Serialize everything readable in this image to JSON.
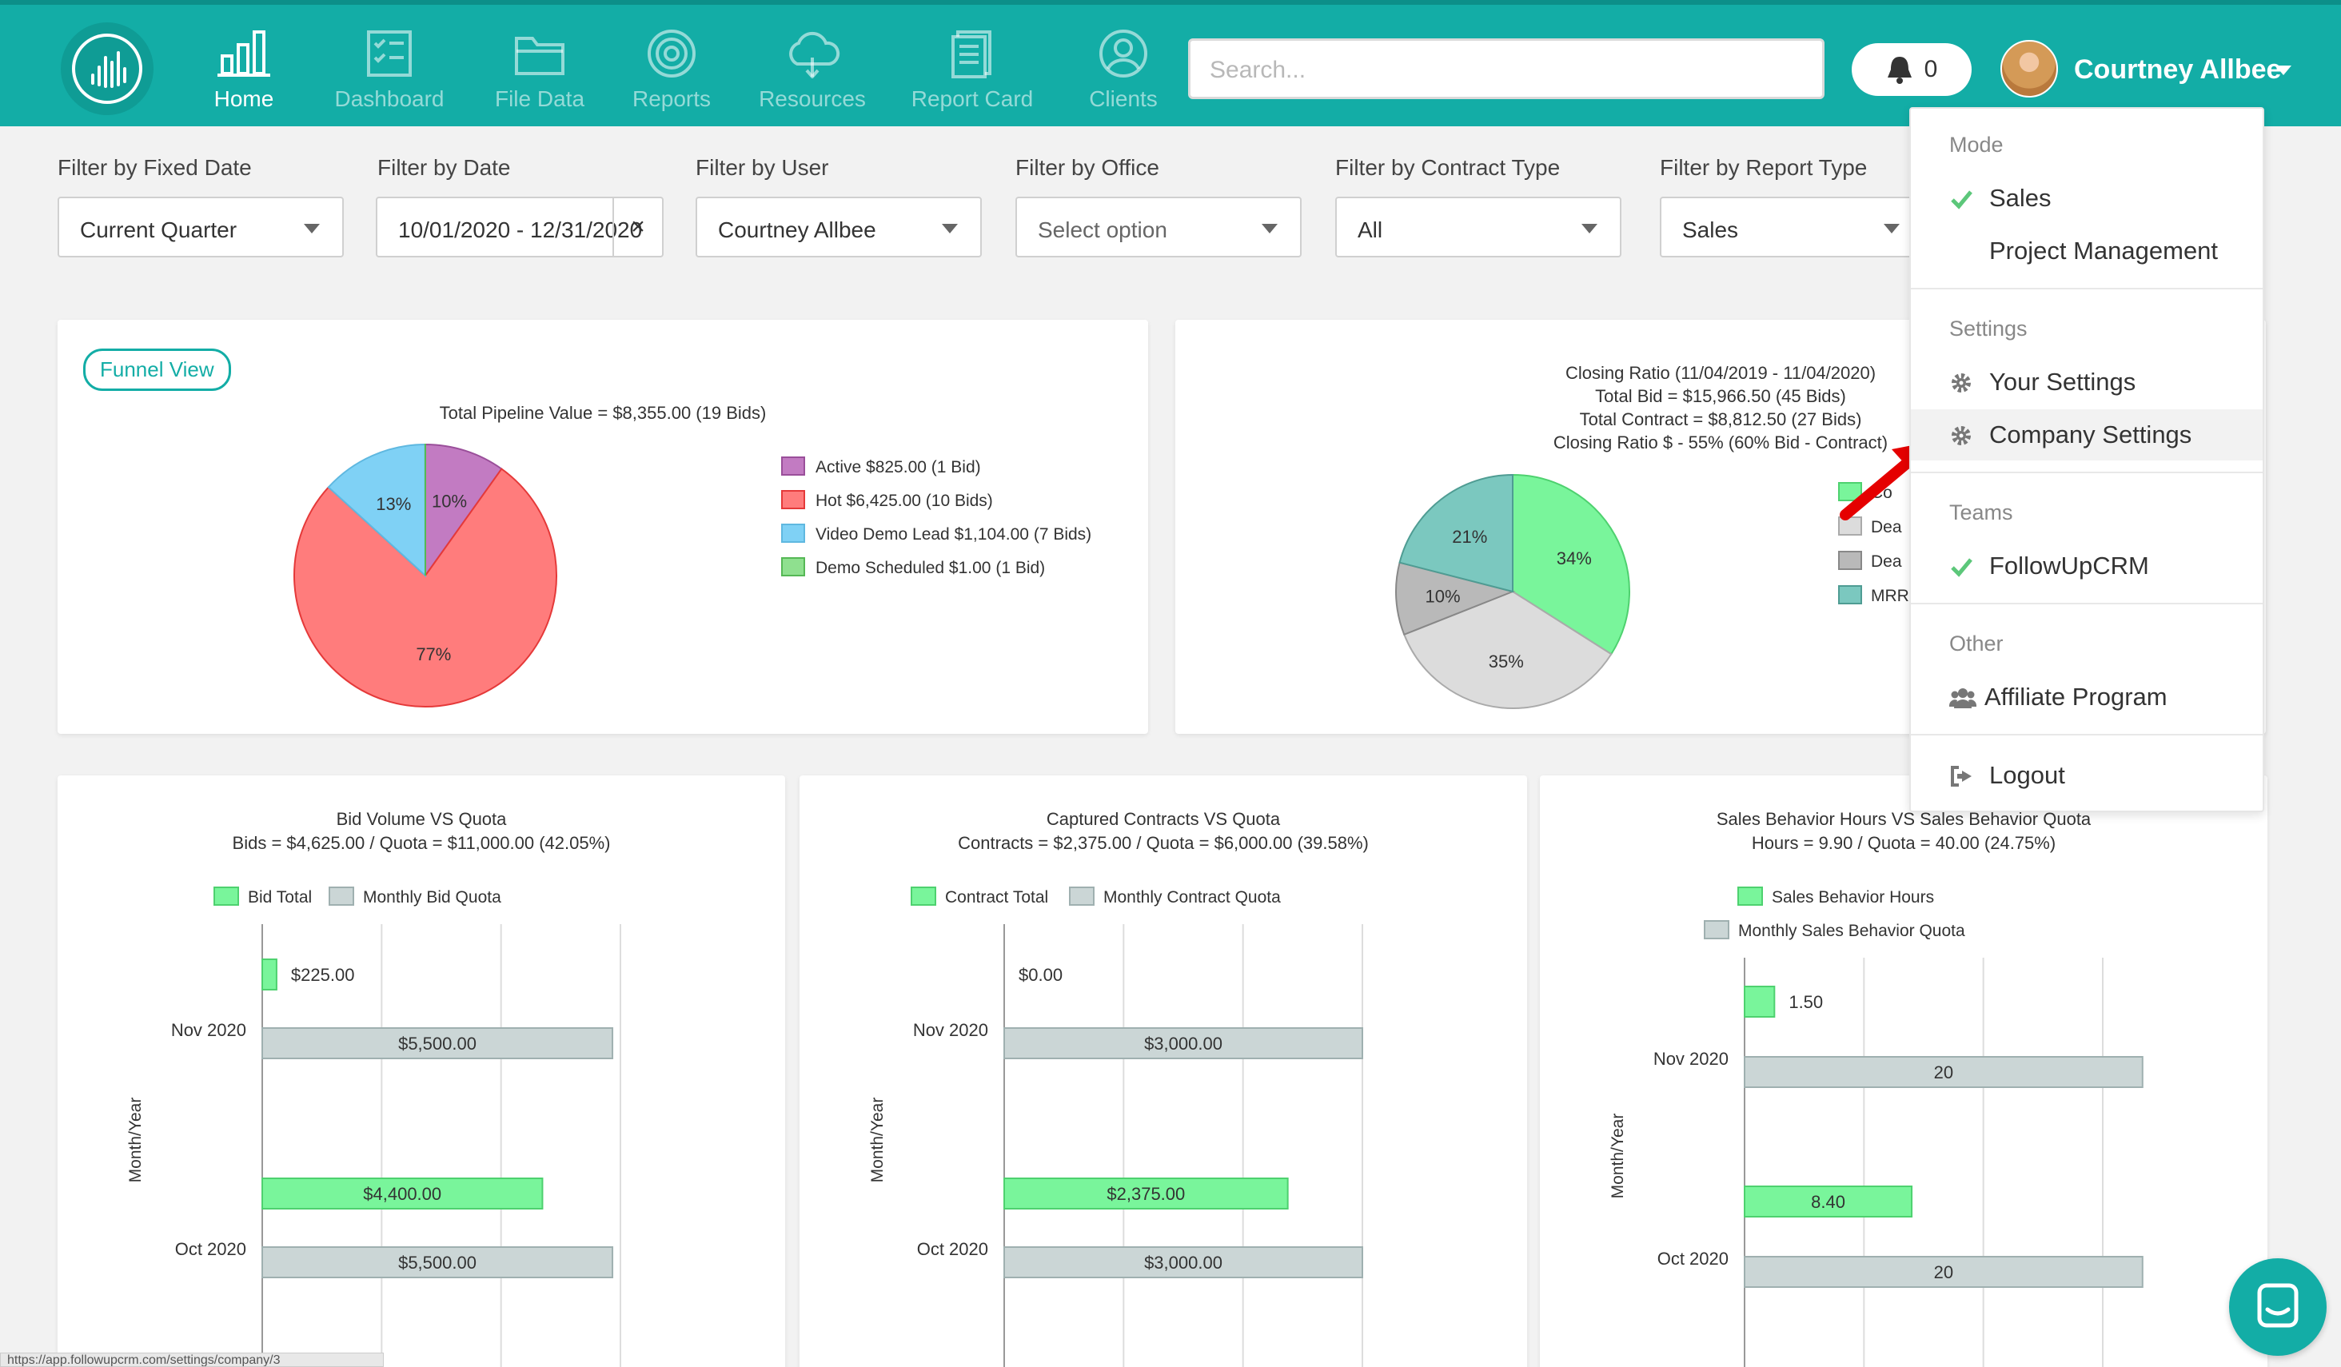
{
  "nav": {
    "items": [
      {
        "label": "Home",
        "icon": "bar-chart-icon",
        "active": true
      },
      {
        "label": "Dashboard",
        "icon": "checklist-icon",
        "active": false
      },
      {
        "label": "File Data",
        "icon": "folder-icon",
        "active": false
      },
      {
        "label": "Reports",
        "icon": "target-icon",
        "active": false
      },
      {
        "label": "Resources",
        "icon": "cloud-icon",
        "active": false
      },
      {
        "label": "Report Card",
        "icon": "document-icon",
        "active": false
      },
      {
        "label": "Clients",
        "icon": "user-circle-icon",
        "active": false
      }
    ],
    "search_placeholder": "Search...",
    "notification_count": "0",
    "user_name": "Courtney Allbee"
  },
  "filters": [
    {
      "label": "Filter by Fixed Date",
      "value": "Current Quarter"
    },
    {
      "label": "Filter by Date",
      "value": "10/01/2020 - 12/31/2020",
      "clear": "×"
    },
    {
      "label": "Filter by User",
      "value": "Courtney Allbee"
    },
    {
      "label": "Filter by Office",
      "value": "Select option"
    },
    {
      "label": "Filter by Contract Type",
      "value": "All"
    },
    {
      "label": "Filter by Report Type",
      "value": "Sales"
    }
  ],
  "funnel": {
    "button_label": "Funnel View"
  },
  "dropdown": {
    "mode_label": "Mode",
    "mode_items": [
      "Sales",
      "Project Management"
    ],
    "settings_label": "Settings",
    "settings_items": [
      "Your Settings",
      "Company Settings"
    ],
    "teams_label": "Teams",
    "teams_items": [
      "FollowUpCRM"
    ],
    "other_label": "Other",
    "other_items": [
      "Affiliate Program"
    ],
    "logout_label": "Logout"
  },
  "status_url": "https://app.followupcrm.com/settings/company/3",
  "colors": {
    "brand": "#13ada6",
    "active": "#c27bc2",
    "hot": "#ff7c7c",
    "video_demo": "#7fd1f5",
    "demo_scheduled": "#8fe08f",
    "green": "#79f59b",
    "light_gray": "#dcdcdc",
    "gray": "#b9b9b9",
    "teal": "#7bc8bf",
    "quota": "#cbd6d6"
  },
  "chart_data": [
    {
      "type": "pie",
      "title": "Total Pipeline Value = $8,355.00 (19 Bids)",
      "labels": [
        "Active $825.00 (1 Bid)",
        "Hot $6,425.00 (10 Bids)",
        "Video Demo Lead $1,104.00 (7 Bids)",
        "Demo Scheduled $1.00 (1 Bid)"
      ],
      "values": [
        825,
        6425,
        1104,
        1
      ],
      "slice_labels": [
        "10%",
        "77%",
        "13%",
        ""
      ],
      "legend": "right"
    },
    {
      "type": "pie",
      "title": [
        "Closing Ratio (11/04/2019 - 11/04/2020)",
        "Total Bid = $15,966.50 (45 Bids)",
        "Total Contract = $8,812.50 (27 Bids)",
        "Closing Ratio $ - 55% (60% Bid - Contract)"
      ],
      "legend_labels": [
        "Co",
        "Dea",
        "Dea",
        "MRR"
      ],
      "values": [
        34,
        35,
        10,
        21
      ],
      "slice_labels": [
        "34%",
        "35%",
        "10%",
        "21%"
      ],
      "legend": "right"
    },
    {
      "type": "bar",
      "orientation": "horizontal",
      "title": [
        "Bid Volume VS Quota",
        "Bids = $4,625.00 / Quota = $11,000.00 (42.05%)"
      ],
      "ylabel": "Month/Year",
      "categories": [
        "Nov 2020",
        "Oct 2020"
      ],
      "series": [
        {
          "name": "Bid Total",
          "values": [
            225,
            4400
          ],
          "labels": [
            "$225.00",
            "$4,400.00"
          ]
        },
        {
          "name": "Monthly Bid Quota",
          "values": [
            5500,
            5500
          ],
          "labels": [
            "$5,500.00",
            "$5,500.00"
          ]
        }
      ],
      "xlim": [
        0,
        7500
      ]
    },
    {
      "type": "bar",
      "orientation": "horizontal",
      "title": [
        "Captured Contracts VS Quota",
        "Contracts = $2,375.00 / Quota = $6,000.00 (39.58%)"
      ],
      "ylabel": "Month/Year",
      "categories": [
        "Nov 2020",
        "Oct 2020"
      ],
      "series": [
        {
          "name": "Contract Total",
          "values": [
            0,
            2375
          ],
          "labels": [
            "$0.00",
            "$2,375.00"
          ]
        },
        {
          "name": "Monthly Contract Quota",
          "values": [
            3000,
            3000
          ],
          "labels": [
            "$3,000.00",
            "$3,000.00"
          ]
        }
      ],
      "xlim": [
        0,
        4000
      ]
    },
    {
      "type": "bar",
      "orientation": "horizontal",
      "title": [
        "Sales Behavior Hours VS Sales Behavior Quota",
        "Hours = 9.90 / Quota = 40.00 (24.75%)"
      ],
      "ylabel": "Month/Year",
      "categories": [
        "Nov 2020",
        "Oct 2020"
      ],
      "series": [
        {
          "name": "Sales Behavior Hours",
          "values": [
            1.5,
            8.4
          ],
          "labels": [
            "1.50",
            "8.40"
          ]
        },
        {
          "name": "Monthly Sales Behavior Quota",
          "values": [
            20,
            20
          ],
          "labels": [
            "20",
            "20"
          ]
        }
      ],
      "xlim": [
        0,
        24
      ]
    }
  ]
}
